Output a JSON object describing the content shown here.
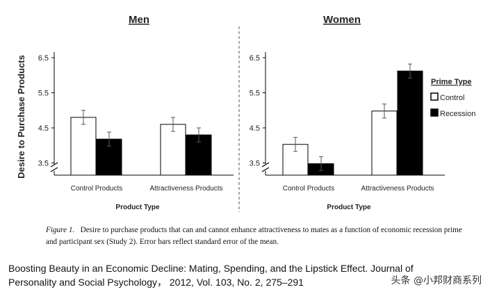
{
  "chart_data": [
    {
      "type": "bar",
      "title": "Men",
      "categories": [
        "Control Products",
        "Attractiveness Products"
      ],
      "series": [
        {
          "name": "Control",
          "values": [
            4.8,
            4.6
          ],
          "errors": [
            0.2,
            0.2
          ]
        },
        {
          "name": "Recession",
          "values": [
            4.18,
            4.3
          ],
          "errors": [
            0.2,
            0.2
          ]
        }
      ],
      "ylabel": "Desire to Purchase Products",
      "xlabel": "Product Type",
      "yticks": [
        3.5,
        4.5,
        5.5,
        6.5
      ],
      "ylim": [
        3.5,
        6.5
      ],
      "axis_break": true
    },
    {
      "type": "bar",
      "title": "Women",
      "categories": [
        "Control Products",
        "Attractiveness Products"
      ],
      "series": [
        {
          "name": "Control",
          "values": [
            4.03,
            4.98
          ],
          "errors": [
            0.2,
            0.2
          ]
        },
        {
          "name": "Recession",
          "values": [
            3.48,
            6.12
          ],
          "errors": [
            0.2,
            0.2
          ]
        }
      ],
      "xlabel": "Product Type",
      "yticks": [
        3.5,
        4.5,
        5.5,
        6.5
      ],
      "ylim": [
        3.5,
        6.5
      ],
      "axis_break": true,
      "legend": {
        "title": "Prime Type",
        "position": "right",
        "entries": [
          {
            "label": "Control",
            "fill": "#ffffff"
          },
          {
            "label": "Recession",
            "fill": "#000000"
          }
        ]
      }
    }
  ],
  "caption": {
    "label": "Figure 1.",
    "text": "Desire to purchase products that can and cannot enhance attractiveness to mates as a function of economic recession prime and participant sex (Study 2). Error bars reflect standard error of the mean."
  },
  "citation": {
    "line1": "Boosting Beauty in an Economic Decline: Mating, Spending, and the Lipstick Effect.  Journal of",
    "line2": "Personality and Social Psychology， 2012, Vol. 103, No. 2, 275–291"
  },
  "watermark": "头条 @小邦财商系列"
}
